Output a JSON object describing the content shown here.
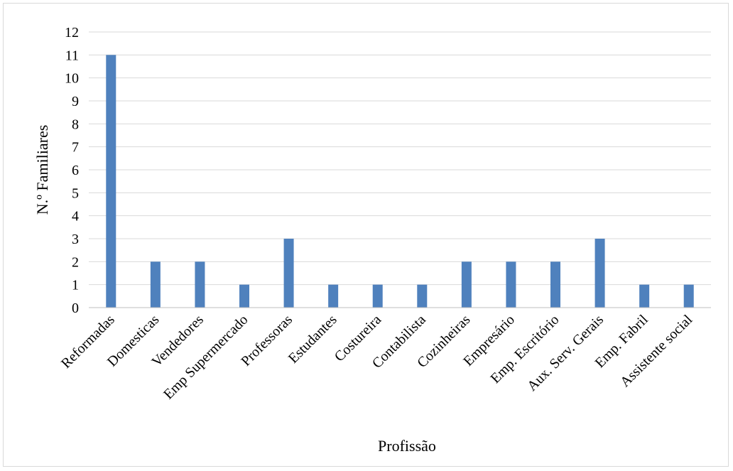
{
  "chart_data": {
    "type": "bar",
    "title": "",
    "xlabel": "Profissão",
    "ylabel": "N.º Familiares",
    "categories": [
      "Reformadas",
      "Domesticas",
      "Vendedores",
      "Emp Supermercado",
      "Professoras",
      "Estudantes",
      "Costureira",
      "Contabilista",
      "Cozinheiras",
      "Empresário",
      "Emp. Escritório",
      "Aux. Serv. Gerais",
      "Emp. Fabril",
      "Assistente social"
    ],
    "values": [
      11,
      2,
      2,
      1,
      3,
      1,
      1,
      1,
      2,
      2,
      2,
      3,
      1,
      1
    ],
    "ylim": [
      0,
      12
    ],
    "yticks": [
      0,
      1,
      2,
      3,
      4,
      5,
      6,
      7,
      8,
      9,
      10,
      11,
      12
    ],
    "grid": true,
    "legend": "none",
    "colors": {
      "bar": "#4f81bd",
      "grid": "#d9d9d9",
      "axis": "#bfbfbf"
    }
  }
}
